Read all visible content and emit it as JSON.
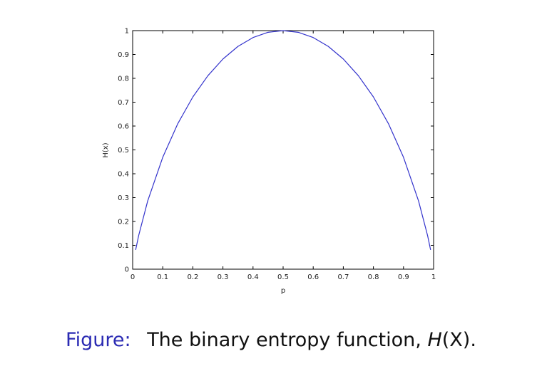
{
  "chart_data": {
    "type": "line",
    "xlabel": "p",
    "ylabel": "H(x)",
    "xlim": [
      0,
      1
    ],
    "ylim": [
      0,
      1
    ],
    "xticks": [
      "0",
      "0.1",
      "0.2",
      "0.3",
      "0.4",
      "0.5",
      "0.6",
      "0.7",
      "0.8",
      "0.9",
      "1"
    ],
    "yticks": [
      "0",
      "0.1",
      "0.2",
      "0.3",
      "0.4",
      "0.5",
      "0.6",
      "0.7",
      "0.8",
      "0.9",
      "1"
    ],
    "grid": false,
    "series": [
      {
        "color": "#3333cc",
        "x": [
          0.01,
          0.02,
          0.05,
          0.1,
          0.15,
          0.2,
          0.25,
          0.3,
          0.35,
          0.4,
          0.45,
          0.5,
          0.55,
          0.6,
          0.65,
          0.7,
          0.75,
          0.8,
          0.85,
          0.9,
          0.95,
          0.98,
          0.99
        ],
        "y": [
          0.081,
          0.141,
          0.286,
          0.469,
          0.61,
          0.722,
          0.811,
          0.881,
          0.934,
          0.971,
          0.993,
          1.0,
          0.993,
          0.971,
          0.934,
          0.881,
          0.811,
          0.722,
          0.61,
          0.469,
          0.286,
          0.141,
          0.081
        ]
      }
    ]
  },
  "caption": {
    "label": "Figure:",
    "text": "The binary entropy function,",
    "math_symbol": "H",
    "math_arg": "(X)",
    "end": "."
  },
  "colors": {
    "line": "#3333cc",
    "caption_label": "#2b2bb3"
  }
}
